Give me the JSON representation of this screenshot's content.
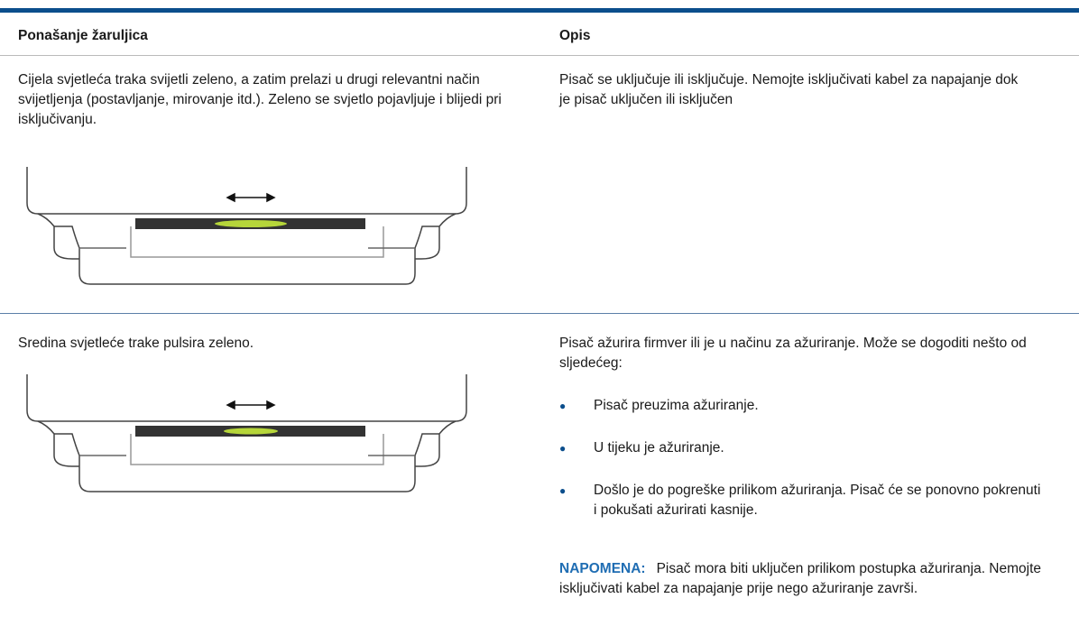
{
  "table": {
    "headers": [
      "Ponašanje žaruljica",
      "Opis"
    ],
    "rows": [
      {
        "behavior": "Cijela svjetleća traka svijetli zeleno, a zatim prelazi u drugi relevantni način svijetljenja (postavljanje, mirovanje itd.). Zeleno se svjetlo pojavljuje i blijedi pri isključivanju.",
        "description": "Pisač se uključuje ili isključuje. Nemojte isključivati kabel za napajanje dok je pisač uključen ili isključen"
      },
      {
        "behavior": "Sredina svjetleće trake pulsira zeleno.",
        "description": "Pisač ažurira firmver ili je u načinu za ažuriranje. Može se dogoditi nešto od sljedećeg:",
        "list": [
          "Pisač preuzima ažuriranje.",
          "U tijeku je ažuriranje.",
          "Došlo je do pogreške prilikom ažuriranja. Pisač će se ponovno pokrenuti i pokušati ažurirati kasnije."
        ],
        "note": {
          "label": "NAPOMENA:",
          "text": "Pisač mora biti uključen prilikom postupka ažuriranja. Nemojte isključivati kabel za napajanje prije nego ažuriranje završi."
        }
      }
    ]
  }
}
